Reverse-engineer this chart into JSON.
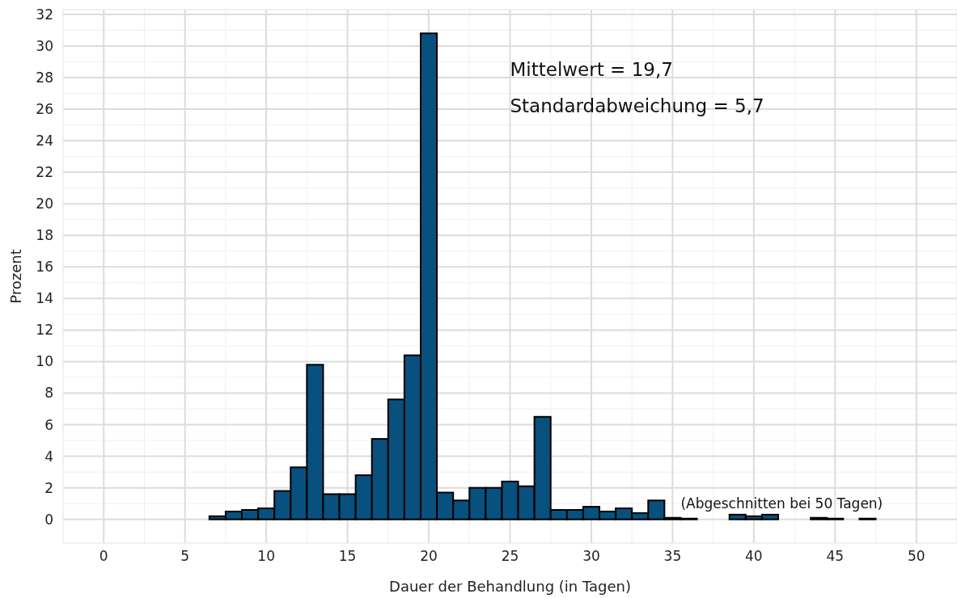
{
  "chart_data": {
    "type": "histogram",
    "xlabel": "Dauer der Behandlung (in Tagen)",
    "ylabel": "Prozent",
    "bins": [
      6.5,
      7.5,
      8.5,
      9.5,
      10.5,
      11.5,
      12.5,
      13.5,
      14.5,
      15.5,
      16.5,
      17.5,
      18.5,
      19.5,
      20.5,
      21.5,
      22.5,
      23.5,
      24.5,
      25.5,
      26.5,
      27.5,
      28.5,
      29.5,
      30.5,
      31.5,
      32.5,
      33.5,
      34.5,
      35.5,
      36.5,
      37.5,
      38.5,
      39.5,
      40.5,
      41.5,
      42.5,
      43.5,
      44.5,
      45.5,
      46.5,
      47.5
    ],
    "values": [
      0.2,
      0.5,
      0.6,
      0.7,
      1.8,
      3.3,
      9.8,
      1.6,
      1.6,
      2.8,
      5.1,
      7.6,
      10.4,
      30.8,
      1.7,
      1.2,
      2.0,
      2.0,
      2.4,
      2.1,
      6.5,
      0.6,
      0.6,
      0.8,
      0.5,
      0.7,
      0.4,
      1.2,
      0.1,
      0.05,
      0,
      0,
      0.3,
      0.2,
      0.3,
      0,
      0,
      0.1,
      0.05,
      0,
      0.05
    ],
    "color": "#08507d",
    "xlim": [
      -2.5,
      52.5
    ],
    "xticks": [
      0,
      5,
      10,
      15,
      20,
      25,
      30,
      35,
      40,
      45,
      50
    ],
    "ylim": [
      -1.5,
      32.3
    ],
    "yticks": [
      0,
      2,
      4,
      6,
      8,
      10,
      12,
      14,
      16,
      18,
      20,
      22,
      24,
      26,
      28,
      30,
      32
    ],
    "grid": true,
    "annotations": [
      "Mittelwert = 19,7",
      "Standardabweichung = 5,7",
      "(Abgeschnitten bei 50 Tagen)"
    ]
  }
}
